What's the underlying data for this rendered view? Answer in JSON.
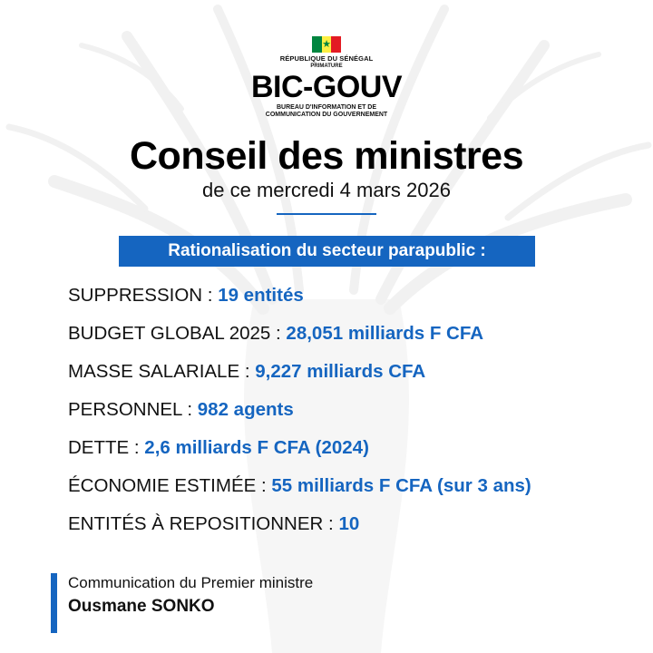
{
  "header": {
    "flag_star": "★",
    "republic": "RÉPUBLIQUE DU SÉNÉGAL",
    "primature": "PRIMATURE",
    "logo": "BIC-GOUV",
    "bureau_line1": "BUREAU D'INFORMATION ET DE",
    "bureau_line2": "COMMUNICATION DU GOUVERNEMENT"
  },
  "title": "Conseil des ministres",
  "subtitle": "de ce mercredi 4 mars 2026",
  "banner": "Rationalisation du secteur parapublic :",
  "facts": [
    {
      "label": "SUPPRESSION : ",
      "value": "19 entités"
    },
    {
      "label": "BUDGET GLOBAL 2025 : ",
      "value": "28,051 milliards F CFA"
    },
    {
      "label": "MASSE SALARIALE : ",
      "value": "9,227 milliards CFA"
    },
    {
      "label": "PERSONNEL : ",
      "value": "982 agents"
    },
    {
      "label": "DETTE : ",
      "value": "2,6 milliards F CFA (2024)"
    },
    {
      "label": "ÉCONOMIE ESTIMÉE : ",
      "value": "55 milliards F CFA (sur 3 ans)"
    },
    {
      "label": "ENTITÉS À REPOSITIONNER : ",
      "value": "10"
    }
  ],
  "footer": {
    "line1": "Communication du Premier ministre",
    "line2": "Ousmane SONKO"
  },
  "colors": {
    "accent": "#1565c0",
    "flag_green": "#00853f",
    "flag_yellow": "#fdef42",
    "flag_red": "#e31b23"
  }
}
